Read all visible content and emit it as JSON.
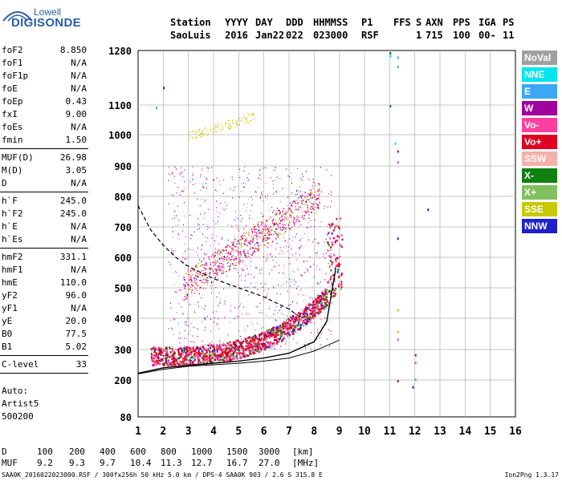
{
  "logo": {
    "line1": "Lowell",
    "line2": "DIGISONDE"
  },
  "header": {
    "labels": [
      "Station",
      "YYYY",
      "DAY",
      "DDD",
      "HHMMSS",
      "P1",
      "FFS",
      "S",
      "AXN",
      "PPS",
      "IGA",
      "PS"
    ],
    "values": [
      "SaoLuis",
      "2016",
      "Jan22",
      "022",
      "023000",
      "RSF",
      "",
      "1",
      "715",
      "100",
      "00-",
      "11"
    ]
  },
  "params_group1": [
    {
      "name": "foF2",
      "value": "8.850"
    },
    {
      "name": "foF1",
      "value": "N/A"
    },
    {
      "name": "foF1p",
      "value": "N/A"
    },
    {
      "name": "foE",
      "value": "N/A"
    },
    {
      "name": "foEp",
      "value": "0.43"
    },
    {
      "name": "fxI",
      "value": "9.00"
    },
    {
      "name": "foEs",
      "value": "N/A"
    },
    {
      "name": "fmin",
      "value": "1.50"
    }
  ],
  "params_group2": [
    {
      "name": "MUF(D)",
      "value": "26.98"
    },
    {
      "name": "M(D)",
      "value": "3.05"
    },
    {
      "name": "D",
      "value": "N/A"
    }
  ],
  "params_group3": [
    {
      "name": "h`F",
      "value": "245.0"
    },
    {
      "name": "h`F2",
      "value": "245.0"
    },
    {
      "name": "h`E",
      "value": "N/A"
    },
    {
      "name": "h`Es",
      "value": "N/A"
    }
  ],
  "params_group4": [
    {
      "name": "hmF2",
      "value": "331.1"
    },
    {
      "name": "hmF1",
      "value": "N/A"
    },
    {
      "name": "hmE",
      "value": "110.0"
    },
    {
      "name": "yF2",
      "value": "96.0"
    },
    {
      "name": "yF1",
      "value": "N/A"
    },
    {
      "name": "yE",
      "value": "20.0"
    },
    {
      "name": "B0",
      "value": "77.5"
    },
    {
      "name": "B1",
      "value": "5.02"
    }
  ],
  "params_group5": [
    {
      "name": "C-level",
      "value": "33"
    }
  ],
  "auto": {
    "line1": "Auto:",
    "line2": "Artist5",
    "line3": "500200"
  },
  "legend": [
    {
      "label": "NoVal",
      "color": "#a0a0a0"
    },
    {
      "label": "NNE",
      "color": "#00e5ee"
    },
    {
      "label": "E",
      "color": "#3ba7f5"
    },
    {
      "label": "W",
      "color": "#a000a0"
    },
    {
      "label": "Vo-",
      "color": "#ff40a0"
    },
    {
      "label": "Vo+",
      "color": "#e00020"
    },
    {
      "label": "SSW",
      "color": "#f5b0a8"
    },
    {
      "label": "X-",
      "color": "#108010"
    },
    {
      "label": "X+",
      "color": "#80c060"
    },
    {
      "label": "SSE",
      "color": "#c8c800"
    },
    {
      "label": "NNW",
      "color": "#2020c8"
    }
  ],
  "axes": {
    "x_ticks": [
      "1",
      "2",
      "3",
      "4",
      "5",
      "6",
      "7",
      "8",
      "9",
      "10",
      "11",
      "12",
      "13",
      "14",
      "15",
      "16"
    ],
    "y_ticks": [
      "80",
      "200",
      "300",
      "400",
      "500",
      "600",
      "700",
      "800",
      "900",
      "1000",
      "1100",
      "1280"
    ]
  },
  "bottom": {
    "d_label": "D",
    "muf_label": "MUF",
    "d_values": [
      "100",
      "200",
      "400",
      "600",
      "800",
      "1000",
      "1500",
      "3000",
      "[km]"
    ],
    "muf_values": [
      "9.2",
      "9.3",
      "9.7",
      "10.4",
      "11.3",
      "12.7",
      "16.7",
      "27.0",
      "[MHz]"
    ]
  },
  "footer": {
    "text": "SAA0K_2016022023000.RSF / 300fx256h 50 kHz 5.0 km / DPS-4 SAA0K 903 / 2.6 S 315.8 E",
    "version": "Ion2Png 1.3.17"
  },
  "chart_data": {
    "type": "scatter",
    "title": "",
    "xlabel": "",
    "ylabel": "",
    "xlim": [
      1,
      16
    ],
    "ylim": [
      80,
      1280
    ],
    "grid": true,
    "x_axis_label_values": [
      1,
      2,
      3,
      4,
      5,
      6,
      7,
      8,
      9,
      10,
      11,
      12,
      13,
      14,
      15,
      16
    ],
    "y_axis_label_values": [
      80,
      200,
      300,
      400,
      500,
      600,
      700,
      800,
      900,
      1000,
      1100,
      1280
    ],
    "profile_curve": {
      "x": [
        1.0,
        2.0,
        3.0,
        4.0,
        5.0,
        6.0,
        7.0,
        8.0,
        8.5,
        8.85
      ],
      "y": [
        222,
        240,
        248,
        255,
        262,
        272,
        288,
        325,
        390,
        560
      ]
    },
    "virtual_height_trace": {
      "x": [
        1.0,
        1.5,
        2.0,
        2.5,
        3.0,
        3.5,
        4.0,
        5.0,
        6.0,
        7.0,
        7.5
      ],
      "y": [
        770,
        690,
        640,
        600,
        570,
        550,
        530,
        500,
        470,
        430,
        400
      ]
    },
    "lower_bound_curve": {
      "x": [
        1.0,
        2.0,
        3.0,
        4.0,
        5.0,
        6.0,
        7.0,
        8.0,
        9.0
      ],
      "y": [
        220,
        235,
        245,
        250,
        255,
        262,
        272,
        295,
        330
      ]
    }
  }
}
